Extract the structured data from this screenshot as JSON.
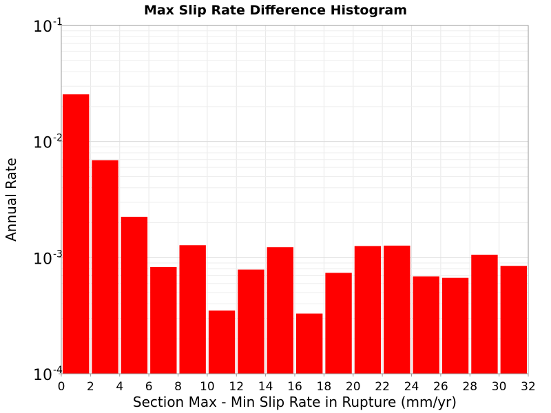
{
  "chart_data": {
    "type": "bar",
    "title": "Max Slip Rate Difference Histogram",
    "xlabel": "Section Max - Min Slip Rate in Rupture (mm/yr)",
    "ylabel": "Annual Rate",
    "yscale": "log",
    "xlim": [
      0,
      32
    ],
    "ylim": [
      0.0001,
      0.1
    ],
    "bin_width": 2,
    "x_ticks": [
      0,
      2,
      4,
      6,
      8,
      10,
      12,
      14,
      16,
      18,
      20,
      22,
      24,
      26,
      28,
      30,
      32
    ],
    "y_ticks": [
      {
        "value": 0.0001,
        "base": "10",
        "exp": "-4"
      },
      {
        "value": 0.001,
        "base": "10",
        "exp": "-3"
      },
      {
        "value": 0.01,
        "base": "10",
        "exp": "-2"
      },
      {
        "value": 0.1,
        "base": "10",
        "exp": "-1"
      }
    ],
    "bins": [
      {
        "x": 1,
        "value": 0.0255
      },
      {
        "x": 3,
        "value": 0.0069
      },
      {
        "x": 5,
        "value": 0.00225
      },
      {
        "x": 7,
        "value": 0.00083
      },
      {
        "x": 9,
        "value": 0.00128
      },
      {
        "x": 11,
        "value": 0.00035
      },
      {
        "x": 13,
        "value": 0.00079
      },
      {
        "x": 15,
        "value": 0.00123
      },
      {
        "x": 17,
        "value": 0.00033
      },
      {
        "x": 19,
        "value": 0.00074
      },
      {
        "x": 21,
        "value": 0.00126
      },
      {
        "x": 23,
        "value": 0.00127
      },
      {
        "x": 25,
        "value": 0.00069
      },
      {
        "x": 27,
        "value": 0.00067
      },
      {
        "x": 29,
        "value": 0.00106
      },
      {
        "x": 31,
        "value": 0.00085
      }
    ],
    "bar_color": "#ff0000",
    "grid": true,
    "legend": "none"
  }
}
